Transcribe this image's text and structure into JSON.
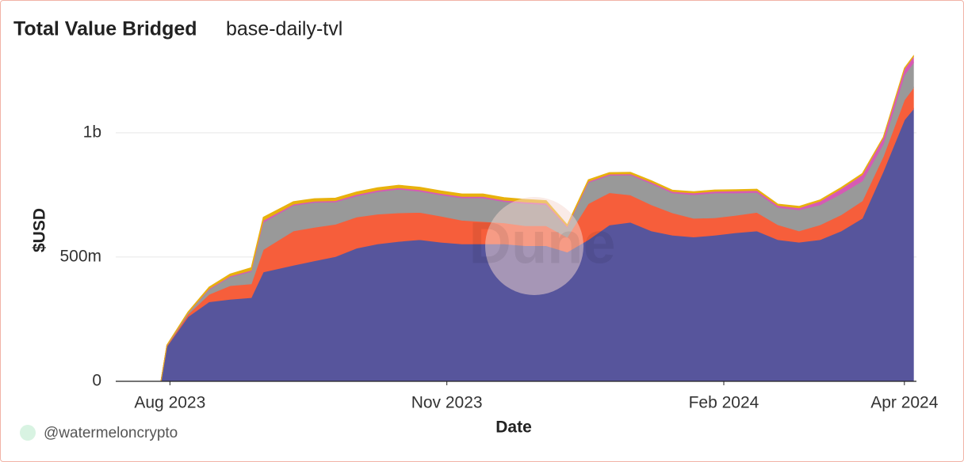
{
  "chart_data": {
    "type": "stacked_area",
    "title": "Total Value Bridged",
    "subtitle": "base-daily-tvl",
    "x_label": "Date",
    "y_label": "$USD",
    "watermark": "Dune",
    "attribution": "@watermeloncrypto",
    "x": [
      "2023-07-14",
      "2023-07-29",
      "2023-07-31",
      "2023-08-07",
      "2023-08-14",
      "2023-08-21",
      "2023-08-28",
      "2023-09-01",
      "2023-09-11",
      "2023-09-18",
      "2023-09-25",
      "2023-10-02",
      "2023-10-09",
      "2023-10-16",
      "2023-10-23",
      "2023-10-30",
      "2023-11-06",
      "2023-11-13",
      "2023-11-20",
      "2023-11-27",
      "2023-12-04",
      "2023-12-11",
      "2023-12-18",
      "2023-12-25",
      "2024-01-01",
      "2024-01-08",
      "2024-01-15",
      "2024-01-22",
      "2024-01-29",
      "2024-02-05",
      "2024-02-12",
      "2024-02-19",
      "2024-02-26",
      "2024-03-04",
      "2024-03-11",
      "2024-03-18",
      "2024-03-25",
      "2024-04-01",
      "2024-04-04"
    ],
    "series": [
      {
        "color": "#57559c",
        "values": [
          0,
          0,
          140000000,
          260000000,
          320000000,
          330000000,
          337000000,
          440000000,
          467000000,
          485000000,
          502000000,
          536000000,
          553000000,
          563000000,
          570000000,
          560000000,
          553000000,
          553000000,
          553000000,
          546000000,
          546000000,
          520000000,
          570000000,
          629000000,
          640000000,
          605000000,
          588000000,
          581000000,
          588000000,
          598000000,
          605000000,
          570000000,
          560000000,
          570000000,
          605000000,
          656000000,
          845000000,
          1052000000,
          1096000000
        ]
      },
      {
        "color": "#f65e3b",
        "values": [
          0,
          0,
          3000000,
          10000000,
          30000000,
          55000000,
          55000000,
          90000000,
          138000000,
          135000000,
          130000000,
          125000000,
          120000000,
          115000000,
          110000000,
          105000000,
          95000000,
          90000000,
          85000000,
          80000000,
          80000000,
          60000000,
          145000000,
          130000000,
          110000000,
          105000000,
          90000000,
          75000000,
          70000000,
          70000000,
          75000000,
          60000000,
          45000000,
          60000000,
          65000000,
          70000000,
          60000000,
          80000000,
          85000000
        ]
      },
      {
        "color": "#999999",
        "values": [
          0,
          0,
          2000000,
          5000000,
          20000000,
          35000000,
          50000000,
          110000000,
          103000000,
          100000000,
          90000000,
          85000000,
          90000000,
          95000000,
          85000000,
          85000000,
          90000000,
          95000000,
          85000000,
          90000000,
          85000000,
          40000000,
          85000000,
          70000000,
          80000000,
          85000000,
          80000000,
          95000000,
          100000000,
          90000000,
          80000000,
          70000000,
          85000000,
          80000000,
          85000000,
          80000000,
          50000000,
          100000000,
          100000000
        ]
      },
      {
        "color": "#d65ab4",
        "values": [
          0,
          0,
          0,
          1000000,
          3000000,
          4000000,
          5000000,
          8000000,
          5000000,
          5000000,
          5000000,
          6000000,
          6000000,
          6000000,
          6000000,
          6000000,
          6000000,
          6000000,
          6000000,
          6000000,
          6000000,
          4000000,
          5000000,
          5000000,
          5000000,
          6000000,
          6000000,
          7000000,
          7000000,
          8000000,
          8000000,
          8000000,
          8000000,
          15000000,
          20000000,
          25000000,
          25000000,
          25000000,
          25000000
        ]
      },
      {
        "color": "#e8b10c",
        "values": [
          0,
          0,
          1000000,
          3000000,
          6000000,
          8000000,
          10000000,
          12000000,
          10000000,
          10000000,
          10000000,
          10000000,
          10000000,
          10000000,
          10000000,
          10000000,
          10000000,
          10000000,
          10000000,
          10000000,
          10000000,
          6000000,
          6000000,
          6000000,
          6000000,
          6000000,
          5000000,
          5000000,
          5000000,
          5000000,
          5000000,
          5000000,
          6000000,
          5000000,
          5000000,
          5000000,
          3000000,
          3000000,
          3000000
        ]
      }
    ],
    "xlim": [
      "2023-07-14",
      "2024-04-05"
    ],
    "xticks": [
      {
        "value": "2023-08-01",
        "label": "Aug 2023"
      },
      {
        "value": "2023-11-01",
        "label": "Nov 2023"
      },
      {
        "value": "2024-02-01",
        "label": "Feb 2024"
      },
      {
        "value": "2024-04-01",
        "label": "Apr 2024"
      }
    ],
    "ylim": [
      0,
      1340000000
    ],
    "yticks": [
      0,
      {
        "value": 500000000,
        "label": "500m"
      },
      {
        "value": 1000000000,
        "label": "1b"
      }
    ],
    "grid": true
  }
}
